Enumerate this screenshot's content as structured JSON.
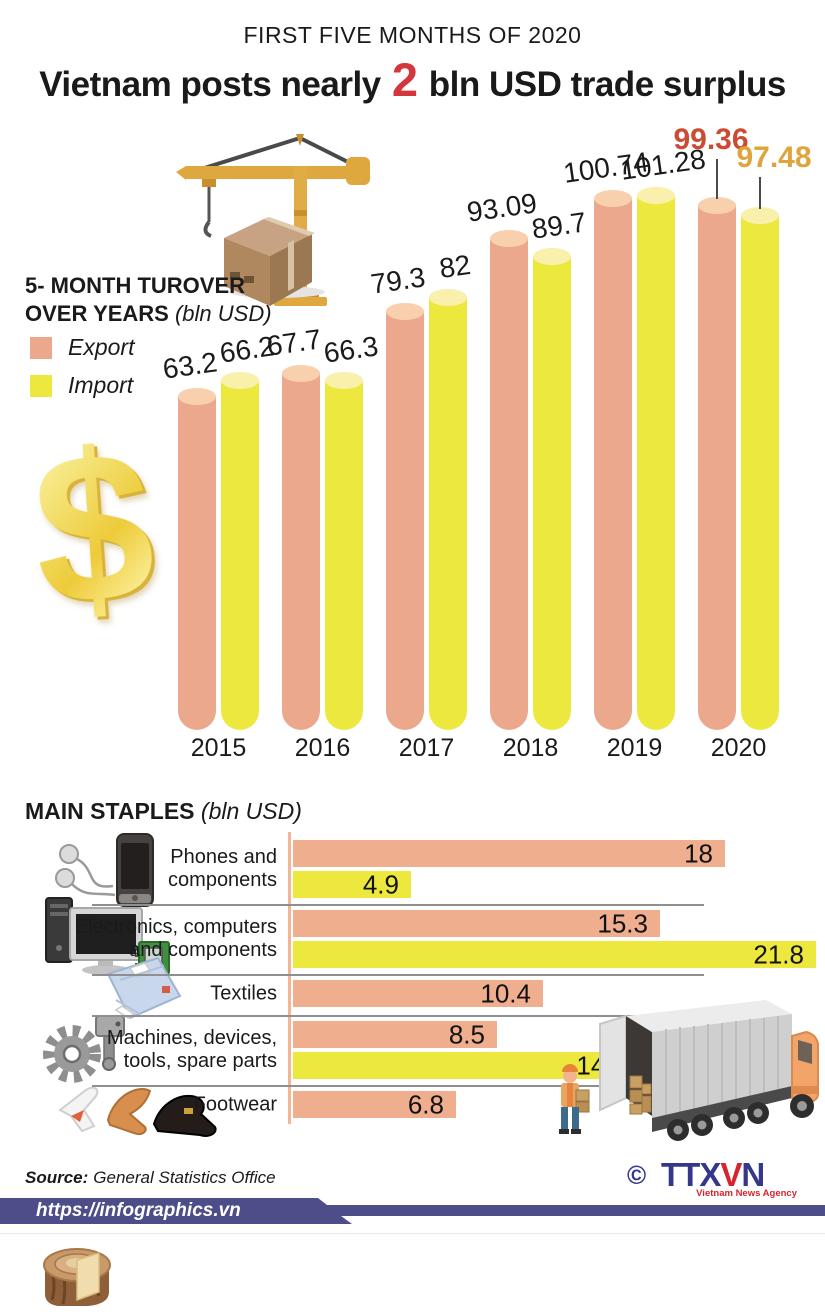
{
  "header": {
    "kicker": "FIRST FIVE MONTHS OF 2020",
    "title_before": "Vietnam posts nearly ",
    "title_number": "2",
    "title_after": " bln USD trade surplus",
    "number_color": "#D5353C"
  },
  "turnover": {
    "heading_line1": "5- MONTH TUROVER",
    "heading_line2": "OVER YEARS",
    "heading_unit": " (bln USD)",
    "legend": [
      {
        "label": "Export",
        "color": "#EBA88C"
      },
      {
        "label": "Import",
        "color": "#EDE83E"
      }
    ]
  },
  "staples": {
    "heading": "MAIN STAPLES",
    "heading_unit": " (bln USD)"
  },
  "footer": {
    "source_label": "Source:",
    "source_text": "General Statistics Office",
    "url": "https://infographics.vn",
    "copyright": "©",
    "agency_part1": "TTX",
    "agency_part2": "V",
    "agency_part3": "N",
    "agency_subtitle": "Vietnam News Agency"
  },
  "chart_data": [
    {
      "type": "bar",
      "orientation": "vertical",
      "title": "5- MONTH TUROVER OVER YEARS (bln USD)",
      "categories": [
        "2015",
        "2016",
        "2017",
        "2018",
        "2019",
        "2020"
      ],
      "series": [
        {
          "name": "Export",
          "color": "#EBA88C",
          "cap_color": "#F8D0AE",
          "values": [
            63.2,
            67.7,
            79.3,
            93.09,
            100.74,
            99.36
          ]
        },
        {
          "name": "Import",
          "color": "#EDE83E",
          "cap_color": "#F9F0AC",
          "values": [
            66.2,
            66.3,
            82,
            89.7,
            101.28,
            97.48
          ]
        }
      ],
      "value_label_color": "#1A1A1A",
      "highlight_year": "2020",
      "highlight_colors": {
        "Export": "#CB4B33",
        "Import": "#DFA43B"
      },
      "legend_position": "left",
      "grid": false,
      "ylim": [
        0,
        110
      ]
    },
    {
      "type": "bar",
      "orientation": "horizontal",
      "title": "MAIN STAPLES (bln USD)",
      "categories": [
        "Phones and components",
        "Electronics, computers and components",
        "Textiles",
        "Machines, devices, tools, spare parts",
        "Footwear"
      ],
      "category_lines": [
        [
          "Phones and",
          "components"
        ],
        [
          "Electronics, computers",
          "and components"
        ],
        [
          "Textiles"
        ],
        [
          "Machines, devices,",
          "tools, spare parts"
        ],
        [
          "Footwear"
        ]
      ],
      "category_icons": [
        "phone-icon",
        "computer-icon",
        "shirt-icon",
        "gear-icon",
        "shoes-icon"
      ],
      "series": [
        {
          "name": "Export",
          "color": "#EFAE8E",
          "values": [
            18,
            15.3,
            10.4,
            8.5,
            6.8
          ]
        },
        {
          "name": "Import",
          "color": "#EDE83E",
          "values": [
            4.9,
            21.8,
            null,
            14.4,
            null
          ]
        }
      ],
      "value_label_color": "#111111",
      "grid": false
    }
  ]
}
